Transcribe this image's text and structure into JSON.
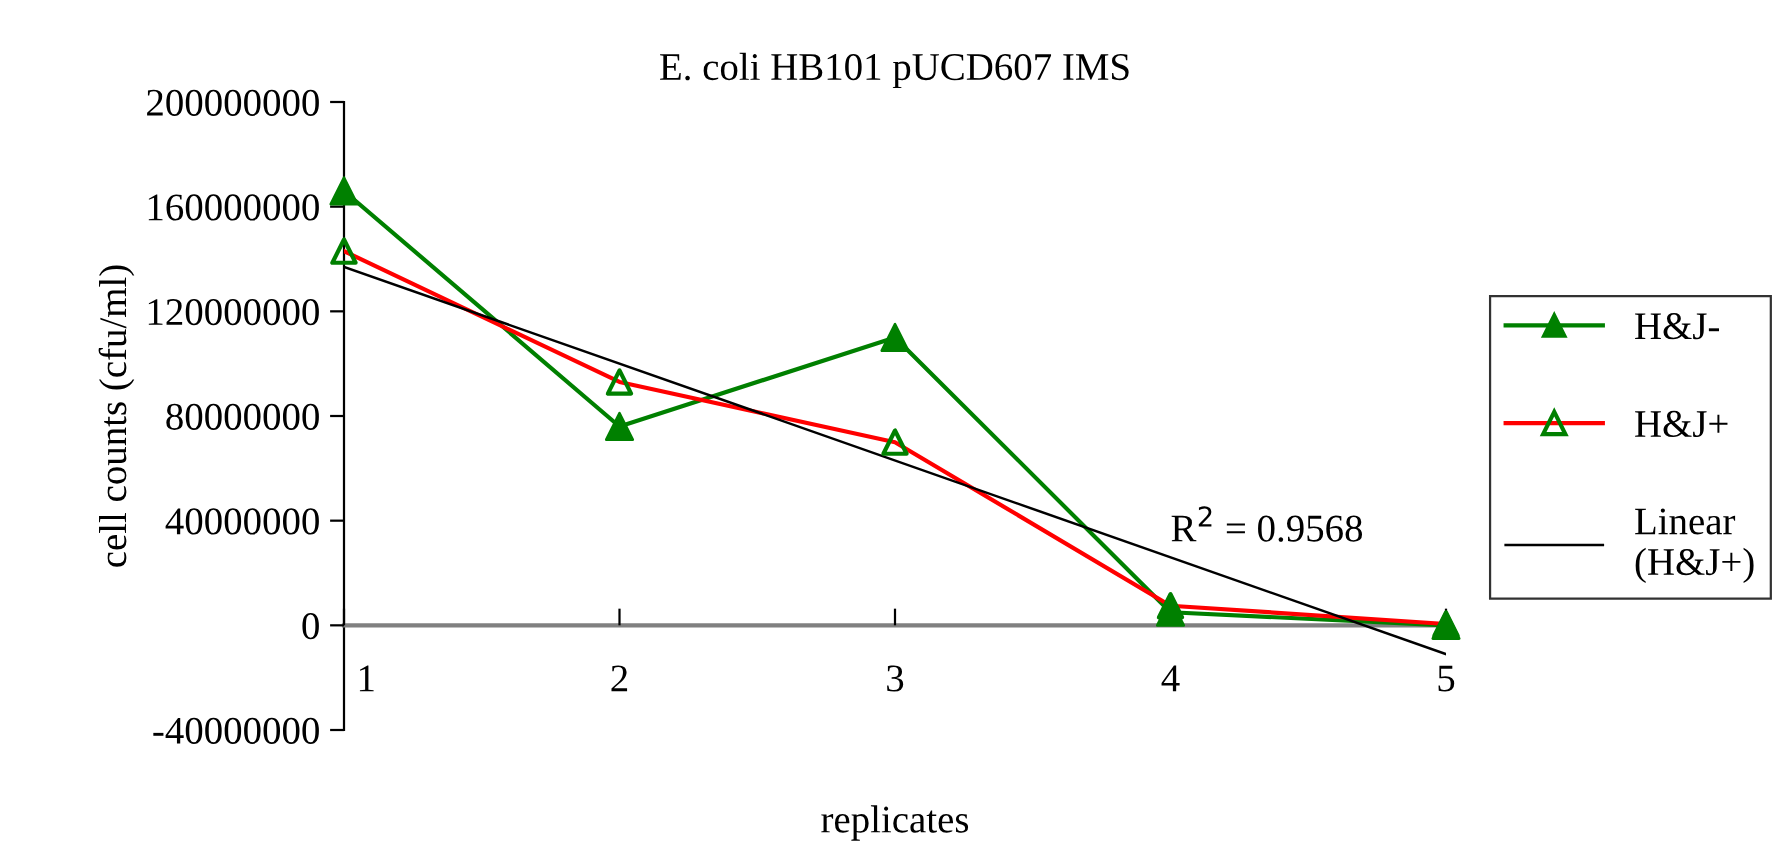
{
  "chart_data": {
    "type": "line",
    "title": "E. coli HB101 pUCD607 IMS",
    "xlabel": "replicates",
    "ylabel": "cell counts (cfu/ml)",
    "x": [
      1,
      2,
      3,
      4,
      5
    ],
    "xlim": [
      1,
      5
    ],
    "xticks": [
      1,
      2,
      3,
      4,
      5
    ],
    "ylim": [
      -40000000,
      200000000
    ],
    "yticks": [
      -40000000,
      0,
      40000000,
      80000000,
      120000000,
      160000000,
      200000000
    ],
    "grid": false,
    "legend": "right",
    "marker": "triangle",
    "series": [
      {
        "name": "H&J-",
        "color": "#008000",
        "values": [
          166000000,
          76000000,
          110000000,
          5000000,
          0
        ]
      },
      {
        "name": "H&J+",
        "color": "#ff0000",
        "colors": [
          "#008000",
          "#008000",
          "#008000",
          "#008000",
          "#008000"
        ],
        "values": [
          143000000,
          93000000,
          70000000,
          7500000,
          500000
        ]
      },
      {
        "name": "Linear\n(H&J+)",
        "color": "#000000",
        "marker": "none",
        "x": [
          1,
          5
        ],
        "values": [
          137000000,
          -11000000
        ]
      }
    ],
    "annotations": [
      "R$^{2}$ = 0.9568"
    ]
  }
}
